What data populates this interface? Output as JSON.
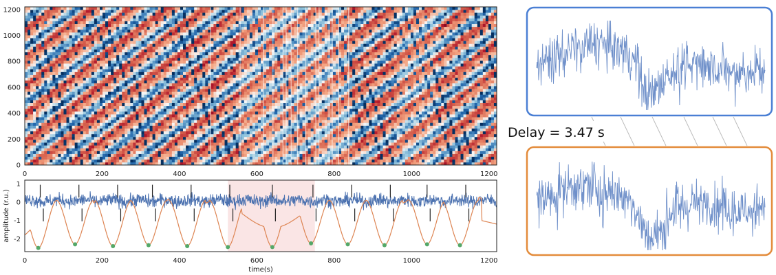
{
  "chart_data": [
    {
      "type": "heatmap",
      "title": "",
      "xlabel": "",
      "ylabel": "",
      "xlim": [
        0,
        1220
      ],
      "ylim": [
        0,
        1220
      ],
      "xticks": [
        "0",
        "200",
        "400",
        "600",
        "800",
        "1000",
        "1200"
      ],
      "yticks": [
        "0",
        "200",
        "400",
        "600",
        "800",
        "1000",
        "1200"
      ],
      "colormap": [
        "#053061",
        "#2166ac",
        "#92c5de",
        "#f7f7f7",
        "#f4a582",
        "#d6604d",
        "#b2182b",
        "#67001f"
      ]
    },
    {
      "type": "line",
      "title": "",
      "xlabel": "time(s)",
      "ylabel": "amplitude (r.u.)",
      "xlim": [
        0,
        1220
      ],
      "ylim": [
        -2.7,
        1.2
      ],
      "xticks": [
        "0",
        "200",
        "400",
        "600",
        "800",
        "1000",
        "1200"
      ],
      "yticks": [
        "1",
        "0",
        "-1",
        "-2"
      ],
      "highlight_range": [
        525,
        750
      ],
      "event_markers_x": [
        40,
        140,
        240,
        330,
        430,
        530,
        640,
        745,
        845,
        945,
        1040,
        1140
      ],
      "series": [
        {
          "color": "#4c72b0"
        },
        {
          "color": "#dd8452"
        }
      ],
      "minima": {
        "color": "#55a868",
        "x": [
          35,
          130,
          228,
          320,
          420,
          525,
          640,
          740,
          835,
          930,
          1040,
          1125
        ],
        "y": [
          -2.5,
          -2.3,
          -2.4,
          -2.35,
          -2.4,
          -2.45,
          -2.45,
          -2.25,
          -2.3,
          -2.35,
          -2.3,
          -2.35
        ]
      }
    }
  ],
  "panel_colors": {
    "top_box": "#4a7fd4",
    "bottom_box": "#e38b3a",
    "trace": "#6e8fc9"
  },
  "delay_label": "Delay = 3.47 s"
}
